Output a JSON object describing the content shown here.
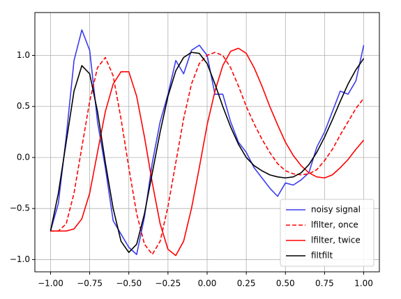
{
  "chart_data": {
    "type": "line",
    "x": [
      -1.0,
      -0.95,
      -0.9,
      -0.85,
      -0.8,
      -0.75,
      -0.7,
      -0.65,
      -0.6,
      -0.55,
      -0.5,
      -0.45,
      -0.4,
      -0.35,
      -0.3,
      -0.25,
      -0.2,
      -0.15,
      -0.1,
      -0.05,
      0.0,
      0.05,
      0.1,
      0.15,
      0.2,
      0.25,
      0.3,
      0.35,
      0.4,
      0.45,
      0.5,
      0.55,
      0.6,
      0.65,
      0.7,
      0.75,
      0.8,
      0.85,
      0.9,
      0.95,
      1.0
    ],
    "series": [
      {
        "name": "noisy signal",
        "color": "#3b3bf0",
        "dash": "solid",
        "values": [
          -0.72,
          -0.45,
          0.2,
          0.95,
          1.25,
          1.05,
          0.35,
          -0.1,
          -0.62,
          -0.75,
          -0.88,
          -0.95,
          -0.58,
          -0.05,
          0.35,
          0.62,
          0.95,
          0.82,
          1.05,
          1.1,
          1.0,
          0.62,
          0.62,
          0.35,
          0.15,
          0.05,
          -0.1,
          -0.2,
          -0.3,
          -0.38,
          -0.25,
          -0.27,
          -0.22,
          -0.15,
          0.1,
          0.25,
          0.45,
          0.65,
          0.62,
          0.75,
          1.1
        ]
      },
      {
        "name": "lfilter, once",
        "color": "#ff0000",
        "dash": "dashed",
        "values": [
          -0.72,
          -0.72,
          -0.65,
          -0.35,
          0.1,
          0.55,
          0.88,
          0.98,
          0.8,
          0.38,
          -0.1,
          -0.55,
          -0.85,
          -0.95,
          -0.82,
          -0.48,
          -0.05,
          0.38,
          0.72,
          0.92,
          1.0,
          1.03,
          1.0,
          0.88,
          0.7,
          0.5,
          0.33,
          0.18,
          0.05,
          -0.06,
          -0.13,
          -0.16,
          -0.17,
          -0.16,
          -0.12,
          -0.03,
          0.08,
          0.22,
          0.35,
          0.48,
          0.58
        ]
      },
      {
        "name": "lfilter, twice",
        "color": "#ff0000",
        "dash": "solid",
        "values": [
          -0.72,
          -0.72,
          -0.72,
          -0.7,
          -0.6,
          -0.35,
          0.05,
          0.45,
          0.72,
          0.84,
          0.84,
          0.6,
          0.2,
          -0.25,
          -0.65,
          -0.9,
          -0.96,
          -0.82,
          -0.5,
          -0.1,
          0.32,
          0.65,
          0.9,
          1.04,
          1.07,
          1.02,
          0.88,
          0.7,
          0.5,
          0.32,
          0.15,
          0.02,
          -0.08,
          -0.15,
          -0.19,
          -0.2,
          -0.17,
          -0.1,
          -0.02,
          0.08,
          0.17
        ]
      },
      {
        "name": "filtfilt",
        "color": "#000000",
        "dash": "solid",
        "values": [
          -0.72,
          -0.35,
          0.15,
          0.65,
          0.9,
          0.82,
          0.45,
          -0.05,
          -0.5,
          -0.82,
          -0.93,
          -0.85,
          -0.55,
          -0.15,
          0.25,
          0.6,
          0.85,
          0.98,
          1.03,
          1.02,
          0.92,
          0.72,
          0.5,
          0.3,
          0.13,
          0.0,
          -0.08,
          -0.13,
          -0.17,
          -0.19,
          -0.2,
          -0.19,
          -0.15,
          -0.07,
          0.05,
          0.2,
          0.37,
          0.55,
          0.72,
          0.86,
          0.97
        ]
      }
    ],
    "xlim": [
      -1.1,
      1.1
    ],
    "ylim": [
      -1.12,
      1.42
    ],
    "xticks": [
      {
        "value": -1.0,
        "label": "−1.00"
      },
      {
        "value": -0.75,
        "label": "−0.75"
      },
      {
        "value": -0.5,
        "label": "−0.50"
      },
      {
        "value": -0.25,
        "label": "−0.25"
      },
      {
        "value": 0.0,
        "label": "0.00"
      },
      {
        "value": 0.25,
        "label": "0.25"
      },
      {
        "value": 0.5,
        "label": "0.50"
      },
      {
        "value": 0.75,
        "label": "0.75"
      },
      {
        "value": 1.0,
        "label": "1.00"
      }
    ],
    "yticks": [
      {
        "value": -1.0,
        "label": "−1.0"
      },
      {
        "value": -0.5,
        "label": "−0.5"
      },
      {
        "value": 0.0,
        "label": "0.0"
      },
      {
        "value": 0.5,
        "label": "0.5"
      },
      {
        "value": 1.0,
        "label": "1.0"
      }
    ],
    "grid": true,
    "legend": "lower right"
  }
}
